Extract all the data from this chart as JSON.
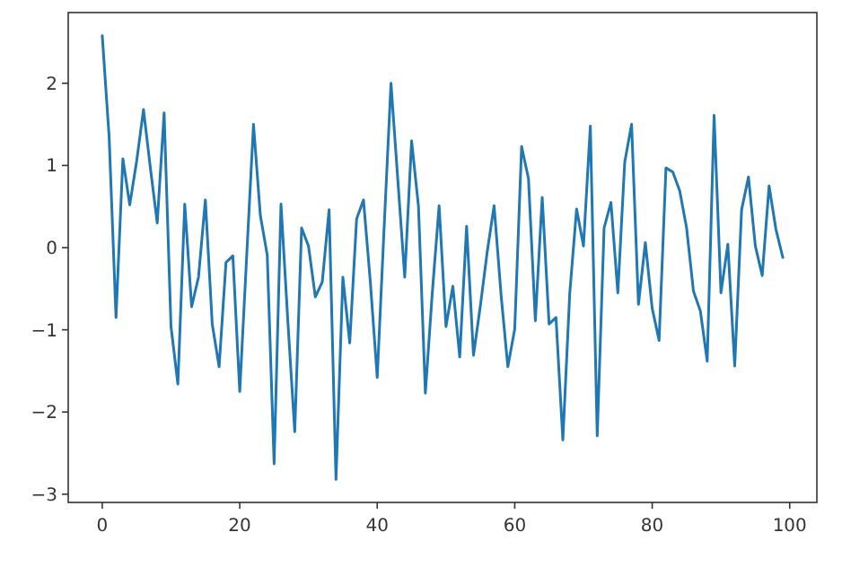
{
  "chart_data": {
    "type": "line",
    "x": [
      0,
      1,
      2,
      3,
      4,
      5,
      6,
      7,
      8,
      9,
      10,
      11,
      12,
      13,
      14,
      15,
      16,
      17,
      18,
      19,
      20,
      21,
      22,
      23,
      24,
      25,
      26,
      27,
      28,
      29,
      30,
      31,
      32,
      33,
      34,
      35,
      36,
      37,
      38,
      39,
      40,
      41,
      42,
      43,
      44,
      45,
      46,
      47,
      48,
      49,
      50,
      51,
      52,
      53,
      54,
      55,
      56,
      57,
      58,
      59,
      60,
      61,
      62,
      63,
      64,
      65,
      66,
      67,
      68,
      69,
      70,
      71,
      72,
      73,
      74,
      75,
      76,
      77,
      78,
      79,
      80,
      81,
      82,
      83,
      84,
      85,
      86,
      87,
      88,
      89,
      90,
      91,
      92,
      93,
      94,
      95,
      96,
      97,
      98,
      99
    ],
    "series": [
      {
        "color": "#1f77b4",
        "values": [
          2.58,
          1.35,
          -0.85,
          1.08,
          0.52,
          1.05,
          1.68,
          0.97,
          0.3,
          1.64,
          -0.96,
          -1.66,
          0.53,
          -0.72,
          -0.36,
          0.58,
          -0.93,
          -1.45,
          -0.18,
          -0.1,
          -1.75,
          -0.12,
          1.5,
          0.39,
          -0.09,
          -2.63,
          0.53,
          -0.9,
          -2.24,
          0.24,
          0.02,
          -0.6,
          -0.42,
          0.46,
          -2.82,
          -0.36,
          -1.16,
          0.35,
          0.58,
          -0.42,
          -1.58,
          0.24,
          2.0,
          0.82,
          -0.36,
          1.3,
          0.5,
          -1.77,
          -0.56,
          0.51,
          -0.96,
          -0.47,
          -1.33,
          0.26,
          -1.31,
          -0.71,
          -0.05,
          0.51,
          -0.56,
          -1.45,
          -0.99,
          1.23,
          0.84,
          -0.89,
          0.61,
          -0.93,
          -0.85,
          -2.34,
          -0.56,
          0.47,
          0.02,
          1.48,
          -2.29,
          0.24,
          0.55,
          -0.55,
          1.04,
          1.5,
          -0.69,
          0.06,
          -0.74,
          -1.13,
          0.97,
          0.92,
          0.69,
          0.24,
          -0.53,
          -0.77,
          -1.38,
          1.61,
          -0.55,
          0.04,
          -1.44,
          0.46,
          0.86,
          0.02,
          -0.34,
          0.75,
          0.22,
          -0.12
        ]
      }
    ],
    "xlim": [
      -4.95,
      103.95
    ],
    "xticks": [
      0,
      20,
      40,
      60,
      80,
      100
    ],
    "ylim": [
      -3.1,
      2.86
    ],
    "yticks": [
      -3,
      -2,
      -1,
      0,
      1,
      2
    ]
  }
}
